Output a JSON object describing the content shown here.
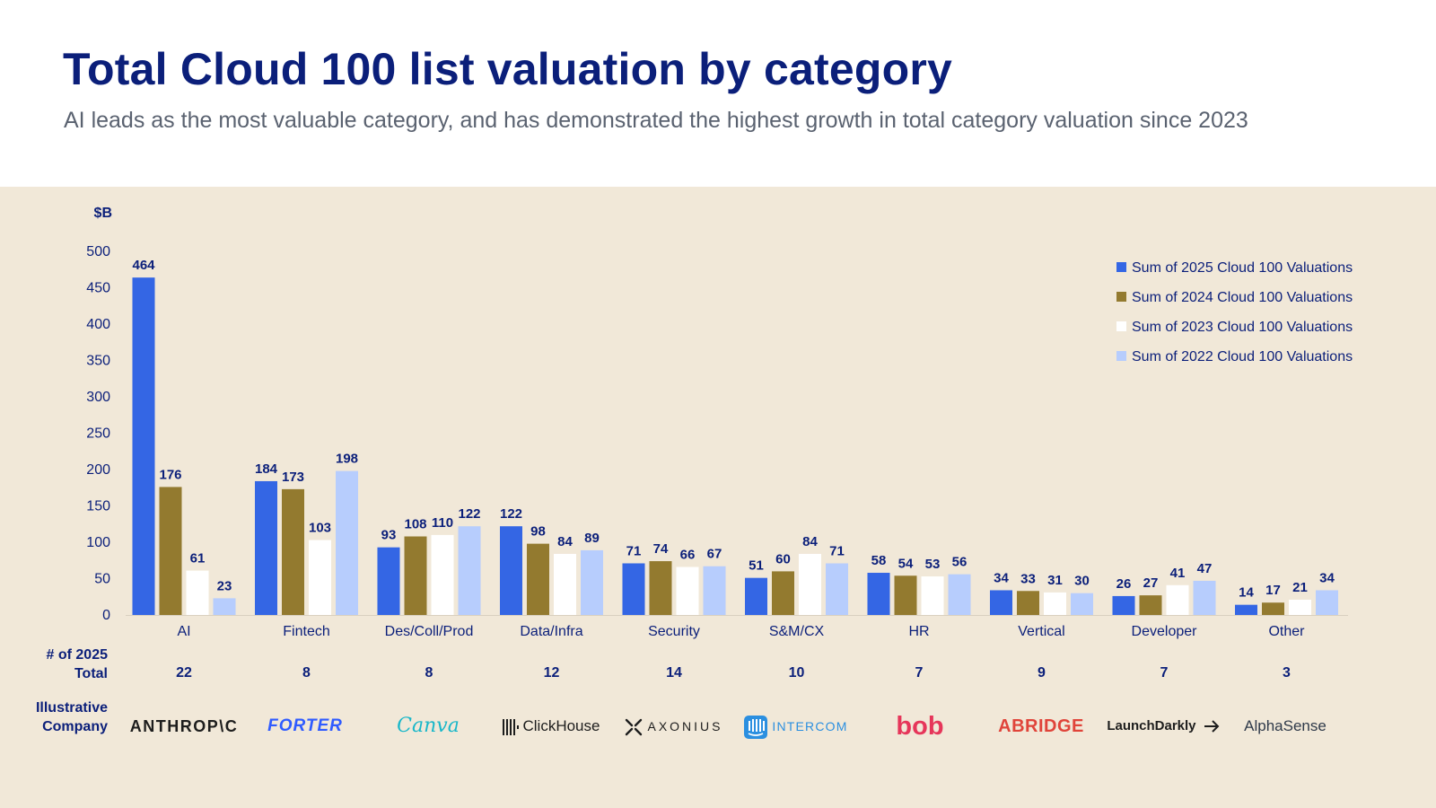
{
  "header": {
    "title": "Total Cloud 100 list valuation by category",
    "subtitle": "AI leads as the most valuable category, and has demonstrated the highest growth in total category valuation since 2023"
  },
  "rows": {
    "count_label_line1": "# of 2025",
    "count_label_line2": "Total",
    "company_label_line1": "Illustrative",
    "company_label_line2": "Company"
  },
  "colors": {
    "title": "#0b1f7a",
    "panel": "#f1e8d8",
    "s2025": "#3466e4",
    "s2024": "#937a2f",
    "s2023": "#ffffff",
    "s2022": "#b7cdfd"
  },
  "counts": [
    "22",
    "8",
    "8",
    "12",
    "14",
    "10",
    "7",
    "9",
    "7",
    "3"
  ],
  "companies": [
    {
      "name": "ANTHROP\\C",
      "icon": "anthropic-logo"
    },
    {
      "name": "FORTER",
      "icon": "forter-logo"
    },
    {
      "name": "Canva",
      "icon": "canva-logo"
    },
    {
      "name": "ClickHouse",
      "icon": "clickhouse-logo"
    },
    {
      "name": "AXONIUS",
      "icon": "axonius-logo"
    },
    {
      "name": "INTERCOM",
      "icon": "intercom-logo"
    },
    {
      "name": "bob",
      "icon": "bob-logo"
    },
    {
      "name": "ABRIDGE",
      "icon": "abridge-logo"
    },
    {
      "name": "LaunchDarkly",
      "icon": "launchdarkly-logo"
    },
    {
      "name": "AlphaSense",
      "icon": "alphasense-logo"
    }
  ],
  "chart_data": {
    "type": "bar",
    "title": "Total Cloud 100 list valuation by category",
    "ylabel": "$B",
    "xlabel": "",
    "ylim": [
      0,
      500
    ],
    "yticks": [
      0,
      50,
      100,
      150,
      200,
      250,
      300,
      350,
      400,
      450,
      500
    ],
    "grid": false,
    "legend_position": "top-right",
    "categories": [
      "AI",
      "Fintech",
      "Des/Coll/Prod",
      "Data/Infra",
      "Security",
      "S&M/CX",
      "HR",
      "Vertical",
      "Developer",
      "Other"
    ],
    "series": [
      {
        "name": "Sum of 2025 Cloud 100 Valuations",
        "values": [
          464,
          184,
          93,
          122,
          71,
          51,
          58,
          34,
          26,
          14
        ]
      },
      {
        "name": "Sum of 2024 Cloud 100 Valuations",
        "values": [
          176,
          173,
          108,
          98,
          74,
          60,
          54,
          33,
          27,
          17
        ]
      },
      {
        "name": "Sum of 2023 Cloud 100 Valuations",
        "values": [
          61,
          103,
          110,
          84,
          66,
          84,
          53,
          31,
          41,
          21
        ]
      },
      {
        "name": "Sum of 2022 Cloud 100 Valuations",
        "values": [
          23,
          198,
          122,
          89,
          67,
          71,
          56,
          30,
          47,
          34
        ]
      }
    ]
  }
}
